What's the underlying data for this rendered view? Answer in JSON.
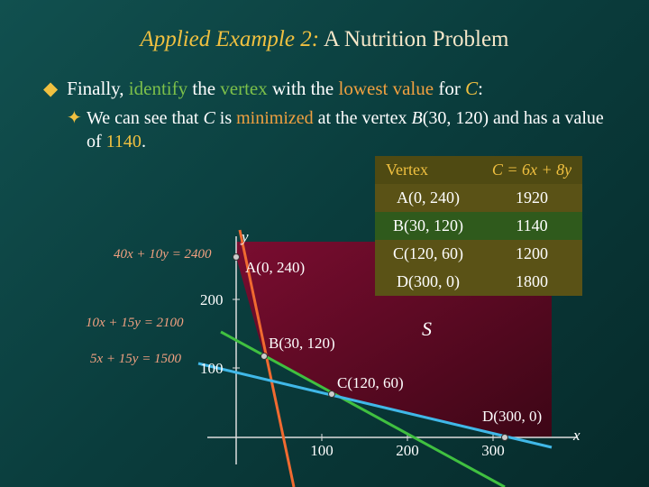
{
  "header": {
    "title_lead": "Applied Example 2:",
    "title_main": "A Nutrition Problem"
  },
  "bullets": [
    [
      "Finally,",
      "identify",
      "the",
      "vertex",
      "with the",
      "lowest value",
      "for",
      "C",
      ":"
    ],
    [
      "We can see that",
      "C",
      "is",
      "minimized",
      "at the vertex",
      "B",
      "(30, 120) and has a value of",
      "1140",
      "."
    ]
  ],
  "table": {
    "header": [
      "Vertex",
      "C = 6x + 8y"
    ],
    "rows": [
      [
        "A(0, 240)",
        1920
      ],
      [
        "B(30, 120)",
        1140
      ],
      [
        "C(120, 60)",
        1200
      ],
      [
        "D(300, 0)",
        1800
      ]
    ]
  },
  "graph": {
    "x_label": "x",
    "y_label": "y",
    "x_ticks": [
      100,
      200,
      300
    ],
    "y_ticks": [
      200,
      100
    ],
    "equations": [
      "40x + 10y = 2400",
      "10x + 15y = 2100",
      "5x + 15y = 1500"
    ],
    "vertices": [
      "A(0, 240)",
      "B(30, 120)",
      "C(120, 60)",
      "D(300, 0)"
    ],
    "region_label": "S"
  }
}
